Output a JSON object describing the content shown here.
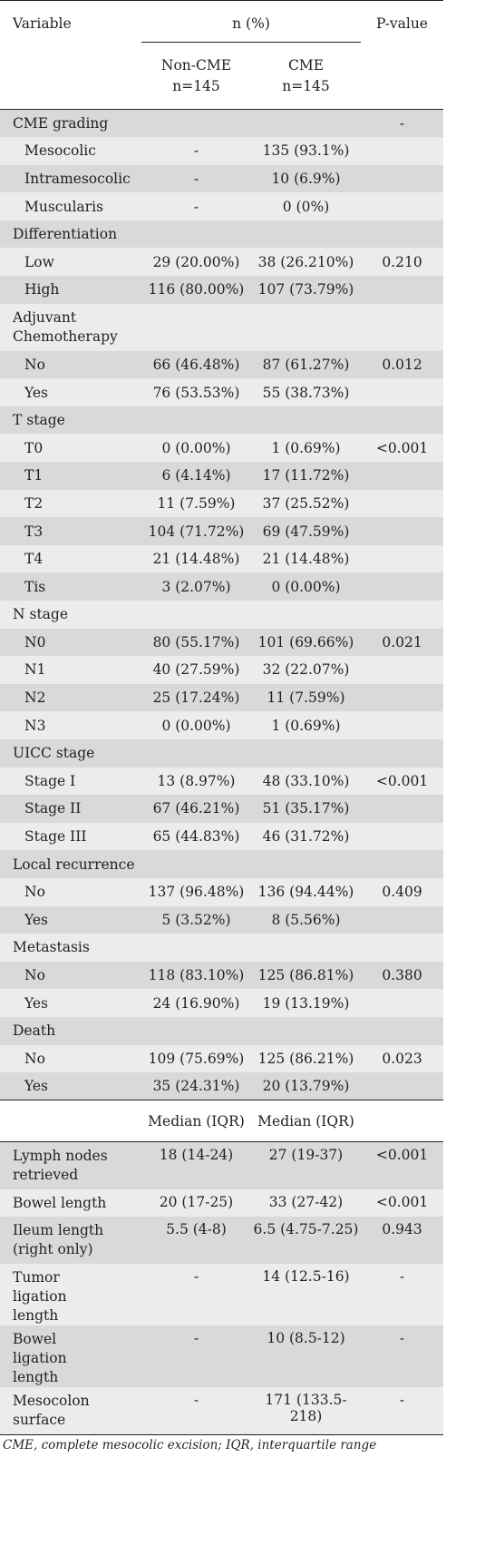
{
  "header": {
    "variable": "Variable",
    "group_title": "n (%)",
    "pvalue": "P-value",
    "col1_name": "Non-CME",
    "col1_n": "n=145",
    "col2_name": "CME",
    "col2_n": "n=145"
  },
  "rows": [
    {
      "label": "CME grading",
      "section": true,
      "a": "",
      "b": "",
      "p": "-"
    },
    {
      "label": "Mesocolic",
      "a": "-",
      "b": "135 (93.1%)",
      "p": ""
    },
    {
      "label": "Intramesocolic",
      "a": "-",
      "b": "10 (6.9%)",
      "p": ""
    },
    {
      "label": "Muscularis",
      "a": "-",
      "b": "0 (0%)",
      "p": ""
    },
    {
      "label": "Differentiation",
      "section": true,
      "a": "",
      "b": "",
      "p": ""
    },
    {
      "label": "Low",
      "a": "29 (20.00%)",
      "b": "38 (26.210%)",
      "p": "0.210"
    },
    {
      "label": "High",
      "a": "116 (80.00%)",
      "b": "107 (73.79%)",
      "p": ""
    },
    {
      "label": "Adjuvant Chemotherapy",
      "section": true,
      "a": "",
      "b": "",
      "p": ""
    },
    {
      "label": "No",
      "a": "66 (46.48%)",
      "b": "87 (61.27%)",
      "p": "0.012"
    },
    {
      "label": "Yes",
      "a": "76 (53.53%)",
      "b": "55 (38.73%)",
      "p": ""
    },
    {
      "label": "T stage",
      "section": true,
      "a": "",
      "b": "",
      "p": ""
    },
    {
      "label": "T0",
      "a": "0 (0.00%)",
      "b": "1 (0.69%)",
      "p": "<0.001"
    },
    {
      "label": "T1",
      "a": "6 (4.14%)",
      "b": "17 (11.72%)",
      "p": ""
    },
    {
      "label": "T2",
      "a": "11 (7.59%)",
      "b": "37 (25.52%)",
      "p": ""
    },
    {
      "label": "T3",
      "a": "104 (71.72%)",
      "b": "69 (47.59%)",
      "p": ""
    },
    {
      "label": "T4",
      "a": "21 (14.48%)",
      "b": "21 (14.48%)",
      "p": ""
    },
    {
      "label": "Tis",
      "a": "3 (2.07%)",
      "b": "0 (0.00%)",
      "p": ""
    },
    {
      "label": "N stage",
      "section": true,
      "a": "",
      "b": "",
      "p": ""
    },
    {
      "label": "N0",
      "a": "80 (55.17%)",
      "b": "101 (69.66%)",
      "p": "0.021"
    },
    {
      "label": "N1",
      "a": "40 (27.59%)",
      "b": "32 (22.07%)",
      "p": ""
    },
    {
      "label": "N2",
      "a": "25 (17.24%)",
      "b": "11 (7.59%)",
      "p": ""
    },
    {
      "label": "N3",
      "a": "0 (0.00%)",
      "b": "1 (0.69%)",
      "p": ""
    },
    {
      "label": "UICC stage",
      "section": true,
      "a": "",
      "b": "",
      "p": ""
    },
    {
      "label": "Stage I",
      "a": "13 (8.97%)",
      "b": "48 (33.10%)",
      "p": "<0.001"
    },
    {
      "label": "Stage II",
      "a": "67 (46.21%)",
      "b": "51 (35.17%)",
      "p": ""
    },
    {
      "label": "Stage III",
      "a": "65 (44.83%)",
      "b": "46 (31.72%)",
      "p": ""
    },
    {
      "label": "Local recurrence",
      "section": true,
      "a": "",
      "b": "",
      "p": ""
    },
    {
      "label": "No",
      "a": "137 (96.48%)",
      "b": "136 (94.44%)",
      "p": "0.409"
    },
    {
      "label": "Yes",
      "a": "5 (3.52%)",
      "b": "8 (5.56%)",
      "p": ""
    },
    {
      "label": "Metastasis",
      "section": true,
      "a": "",
      "b": "",
      "p": ""
    },
    {
      "label": "No",
      "a": "118 (83.10%)",
      "b": "125 (86.81%)",
      "p": "0.380"
    },
    {
      "label": "Yes",
      "a": "24 (16.90%)",
      "b": "19 (13.19%)",
      "p": ""
    },
    {
      "label": "Death",
      "section": true,
      "a": "",
      "b": "",
      "p": ""
    },
    {
      "label": "No",
      "a": "109 (75.69%)",
      "b": "125 (86.21%)",
      "p": "0.023"
    },
    {
      "label": "Yes",
      "a": "35 (24.31%)",
      "b": "20 (13.79%)",
      "p": ""
    }
  ],
  "median_header": {
    "col1": "Median (IQR)",
    "col2": "Median (IQR)"
  },
  "median_rows": [
    {
      "label": "Lymph nodes retrieved",
      "a": "18 (14-24)",
      "b": "27 (19-37)",
      "p": "<0.001"
    },
    {
      "label": "Bowel length",
      "a": "20 (17-25)",
      "b": "33 (27-42)",
      "p": "<0.001"
    },
    {
      "label": "Ileum length (right only)",
      "a": "5.5 (4-8)",
      "b": "6.5 (4.75-7.25)",
      "p": "0.943"
    },
    {
      "label": "Tumor ligation length",
      "a": "-",
      "b": "14 (12.5-16)",
      "p": "-"
    },
    {
      "label": "Bowel ligation length",
      "a": "-",
      "b": "10 (8.5-12)",
      "p": "-"
    },
    {
      "label": "Mesocolon surface",
      "a": "-",
      "b": "171 (133.5-218)",
      "p": "-"
    }
  ],
  "footnote": "CME, complete mesocolic excision; IQR, interquartile range",
  "colors": {
    "shade_dark": "#d9d9d9",
    "shade_light": "#ececec",
    "rule": "#231f20"
  }
}
